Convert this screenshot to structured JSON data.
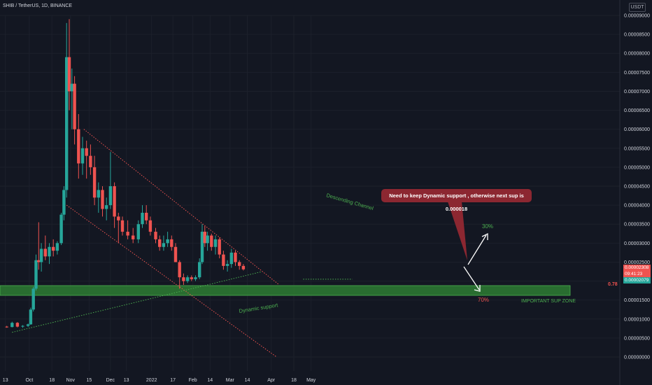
{
  "header": {
    "title": "SHIB / TetherUS, 1D, BINANCE",
    "currency": "USDT"
  },
  "price_tags": {
    "last_price": "0.00002308",
    "countdown": "09:41:23",
    "support_price": "0.00002079",
    "fib_label": "0.78"
  },
  "colors": {
    "background": "#131722",
    "up": "#26a69a",
    "down": "#ef5350",
    "channel": "#ef5350",
    "support_line": "#4caf50",
    "zone": "#2e7d32",
    "callout": "#8c2731"
  },
  "chart_data": {
    "type": "candlestick",
    "title": "SHIB / TetherUS, 1D, BINANCE",
    "y_scale": "linear",
    "ylim": [
      0,
      9e-05
    ],
    "y_ticks": [
      "0.00009000",
      "0.00008500",
      "0.00008000",
      "0.00007500",
      "0.00007000",
      "0.00006500",
      "0.00006000",
      "0.00005500",
      "0.00005000",
      "0.00004500",
      "0.00004000",
      "0.00003500",
      "0.00003000",
      "0.00002500",
      "0.00002000",
      "0.00001500",
      "0.00001000",
      "0.00000500",
      "0.00000000"
    ],
    "x_ticks": [
      "13",
      "Oct",
      "18",
      "Nov",
      "15",
      "Dec",
      "13",
      "2022",
      "17",
      "Feb",
      "14",
      "Mar",
      "14",
      "Apr",
      "18",
      "May"
    ],
    "x_range": [
      "2021-09-13",
      "2022-05-24"
    ],
    "series": [
      {
        "candles_ohlc": [
          [
            "2021-09-13",
            8e-06,
            8.2e-06,
            7.7e-06,
            7.9e-06
          ],
          [
            "2021-09-17",
            7.9e-06,
            9.3e-06,
            7.8e-06,
            9e-06
          ],
          [
            "2021-09-21",
            9e-06,
            9.2e-06,
            7.8e-06,
            8e-06
          ],
          [
            "2021-09-25",
            8e-06,
            8.4e-06,
            7.7e-06,
            8.2e-06
          ],
          [
            "2021-09-29",
            8.2e-06,
            8.8e-06,
            7.9e-06,
            8.6e-06
          ],
          [
            "2021-10-01",
            8.6e-06,
            1.3e-05,
            8.5e-06,
            1.25e-05
          ],
          [
            "2021-10-03",
            1.25e-05,
            1.85e-05,
            1.2e-05,
            1.8e-05
          ],
          [
            "2021-10-05",
            1.8e-05,
            2.7e-05,
            1.75e-05,
            2.55e-05
          ],
          [
            "2021-10-07",
            2.55e-05,
            3.55e-05,
            2.3e-05,
            2.5e-05
          ],
          [
            "2021-10-09",
            2.5e-05,
            3e-05,
            2.25e-05,
            2.85e-05
          ],
          [
            "2021-10-12",
            2.85e-05,
            3.2e-05,
            2.55e-05,
            2.65e-05
          ],
          [
            "2021-10-15",
            2.65e-05,
            3e-05,
            2.45e-05,
            2.9e-05
          ],
          [
            "2021-10-18",
            2.9e-05,
            3.1e-05,
            2.65e-05,
            2.8e-05
          ],
          [
            "2021-10-21",
            2.8e-05,
            3.05e-05,
            2.7e-05,
            3e-05
          ],
          [
            "2021-10-24",
            3e-05,
            3.8e-05,
            2.95e-05,
            3.75e-05
          ],
          [
            "2021-10-26",
            3.75e-05,
            4.5e-05,
            3.6e-05,
            4.4e-05
          ],
          [
            "2021-10-28",
            4.4e-05,
            8.8e-05,
            4.2e-05,
            7.9e-05
          ],
          [
            "2021-10-30",
            7.9e-05,
            8.9e-05,
            6.5e-05,
            7e-05
          ],
          [
            "2021-11-01",
            7e-05,
            7.6e-05,
            6e-05,
            7.2e-05
          ],
          [
            "2021-11-03",
            7.2e-05,
            7.4e-05,
            5.6e-05,
            6e-05
          ],
          [
            "2021-11-06",
            6e-05,
            6.4e-05,
            4.7e-05,
            5.1e-05
          ],
          [
            "2021-11-09",
            5.1e-05,
            5.8e-05,
            4.8e-05,
            5.5e-05
          ],
          [
            "2021-11-12",
            5.5e-05,
            5.7e-05,
            4.7e-05,
            5.3e-05
          ],
          [
            "2021-11-15",
            5.3e-05,
            5.6e-05,
            4.8e-05,
            5e-05
          ],
          [
            "2021-11-18",
            5e-05,
            5.3e-05,
            4e-05,
            4.2e-05
          ],
          [
            "2021-11-21",
            4.2e-05,
            4.6e-05,
            3.8e-05,
            4.4e-05
          ],
          [
            "2021-11-24",
            4.4e-05,
            4.5e-05,
            3.7e-05,
            3.9e-05
          ],
          [
            "2021-11-27",
            3.9e-05,
            4.2e-05,
            3.6e-05,
            4e-05
          ],
          [
            "2021-11-30",
            4e-05,
            5.4e-05,
            3.9e-05,
            4.5e-05
          ],
          [
            "2021-12-03",
            4.5e-05,
            4.6e-05,
            3.4e-05,
            3.7e-05
          ],
          [
            "2021-12-06",
            3.7e-05,
            3.8e-05,
            3e-05,
            3.6e-05
          ],
          [
            "2021-12-09",
            3.6e-05,
            3.7e-05,
            3.2e-05,
            3.3e-05
          ],
          [
            "2021-12-13",
            3.3e-05,
            3.6e-05,
            3.1e-05,
            3.2e-05
          ],
          [
            "2021-12-17",
            3.2e-05,
            3.4e-05,
            3e-05,
            3.1e-05
          ],
          [
            "2021-12-21",
            3.1e-05,
            3.6e-05,
            3e-05,
            3.5e-05
          ],
          [
            "2021-12-24",
            3.5e-05,
            4e-05,
            3.4e-05,
            3.8e-05
          ],
          [
            "2021-12-27",
            3.8e-05,
            4e-05,
            3.5e-05,
            3.6e-05
          ],
          [
            "2021-12-30",
            3.6e-05,
            3.7e-05,
            3.2e-05,
            3.3e-05
          ],
          [
            "2022-01-03",
            3.3e-05,
            3.4e-05,
            3e-05,
            3.1e-05
          ],
          [
            "2022-01-06",
            3.1e-05,
            3.2e-05,
            2.8e-05,
            2.9e-05
          ],
          [
            "2022-01-09",
            2.9e-05,
            3.2e-05,
            2.8e-05,
            3e-05
          ],
          [
            "2022-01-12",
            3e-05,
            3.3e-05,
            2.9e-05,
            3.1e-05
          ],
          [
            "2022-01-15",
            3.1e-05,
            3.2e-05,
            2.8e-05,
            2.9e-05
          ],
          [
            "2022-01-18",
            2.9e-05,
            3e-05,
            2.5e-05,
            2.5e-05
          ],
          [
            "2022-01-21",
            2.5e-05,
            2.55e-05,
            1.8e-05,
            2.1e-05
          ],
          [
            "2022-01-24",
            2.1e-05,
            2.2e-05,
            1.9e-05,
            2e-05
          ],
          [
            "2022-01-27",
            2e-05,
            2.15e-05,
            1.95e-05,
            2.1e-05
          ],
          [
            "2022-01-30",
            2.1e-05,
            2.15e-05,
            2e-05,
            2.05e-05
          ],
          [
            "2022-02-02",
            2.05e-05,
            2.15e-05,
            2e-05,
            2.1e-05
          ],
          [
            "2022-02-05",
            2.1e-05,
            2.6e-05,
            2.05e-05,
            2.5e-05
          ],
          [
            "2022-02-07",
            2.5e-05,
            3.5e-05,
            2.45e-05,
            3.3e-05
          ],
          [
            "2022-02-09",
            3.3e-05,
            3.45e-05,
            2.9e-05,
            3e-05
          ],
          [
            "2022-02-11",
            3e-05,
            3.3e-05,
            2.8e-05,
            3.2e-05
          ],
          [
            "2022-02-14",
            3.2e-05,
            3.25e-05,
            2.8e-05,
            2.9e-05
          ],
          [
            "2022-02-17",
            2.9e-05,
            3.2e-05,
            2.7e-05,
            3.1e-05
          ],
          [
            "2022-02-20",
            3.1e-05,
            3.15e-05,
            2.6e-05,
            2.7e-05
          ],
          [
            "2022-02-23",
            2.7e-05,
            2.8e-05,
            2.3e-05,
            2.4e-05
          ],
          [
            "2022-02-26",
            2.4e-05,
            2.55e-05,
            2.25e-05,
            2.45e-05
          ],
          [
            "2022-03-01",
            2.45e-05,
            2.85e-05,
            2.35e-05,
            2.75e-05
          ],
          [
            "2022-03-04",
            2.75e-05,
            2.8e-05,
            2.4e-05,
            2.5e-05
          ],
          [
            "2022-03-07",
            2.5e-05,
            2.55e-05,
            2.3e-05,
            2.4e-05
          ],
          [
            "2022-03-10",
            2.4e-05,
            2.45e-05,
            2.28e-05,
            2.31e-05
          ]
        ]
      }
    ],
    "lines": [
      {
        "label": "Descending Channel",
        "style": "dotted",
        "color": "#ef5350",
        "points": [
          [
            "2021-11-10",
            6e-05
          ],
          [
            "2022-04-06",
            1.9e-05
          ]
        ]
      },
      {
        "style": "dotted",
        "color": "#ef5350",
        "points": [
          [
            "2021-10-28",
            4e-05
          ],
          [
            "2022-04-04",
            0.0
          ]
        ]
      },
      {
        "label": "Dynamic support",
        "style": "dotted",
        "color": "#4caf50",
        "points": [
          [
            "2021-09-17",
            6.5e-06
          ],
          [
            "2022-03-24",
            2.25e-05
          ]
        ]
      },
      {
        "style": "dotted",
        "color": "#4caf50",
        "points": [
          [
            "2022-04-24",
            2.05e-05
          ],
          [
            "2022-05-31",
            2.05e-05
          ]
        ]
      }
    ],
    "zones": [
      {
        "label": "IMPORTANT SUP ZONE",
        "y_top": 1.9e-05,
        "y_bottom": 1.65e-05
      }
    ],
    "annotations": [
      {
        "text": "Need to keep Dynamic support , otherwise next sup is 0.000018"
      },
      {
        "text": "30%",
        "color": "#4caf50"
      },
      {
        "text": "70%",
        "color": "#ef5350"
      }
    ]
  }
}
